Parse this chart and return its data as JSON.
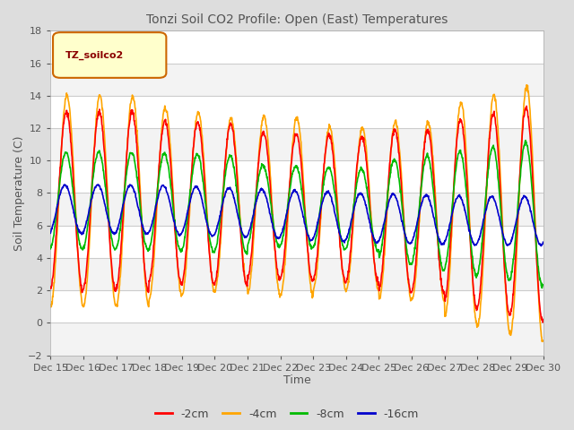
{
  "title": "Tonzi Soil CO2 Profile: Open (East) Temperatures",
  "xlabel": "Time",
  "ylabel": "Soil Temperature (C)",
  "legend_label": "TZ_soilco2",
  "series_labels": [
    "-2cm",
    "-4cm",
    "-8cm",
    "-16cm"
  ],
  "series_colors": [
    "#ff0000",
    "#ffa500",
    "#00bb00",
    "#0000cc"
  ],
  "ylim": [
    -2,
    18
  ],
  "yticks": [
    -2,
    0,
    2,
    4,
    6,
    8,
    10,
    12,
    14,
    16,
    18
  ],
  "xtick_labels": [
    "Dec 15",
    "Dec 16",
    "Dec 17",
    "Dec 18",
    "Dec 19",
    "Dec 20",
    "Dec 21",
    "Dec 22",
    "Dec 23",
    "Dec 24",
    "Dec 25",
    "Dec 26",
    "Dec 27",
    "Dec 28",
    "Dec 29",
    "Dec 30"
  ],
  "bg_color": "#dddddd",
  "plot_bg_color": "#ffffff",
  "grid_color": "#cccccc",
  "n_points": 1440
}
